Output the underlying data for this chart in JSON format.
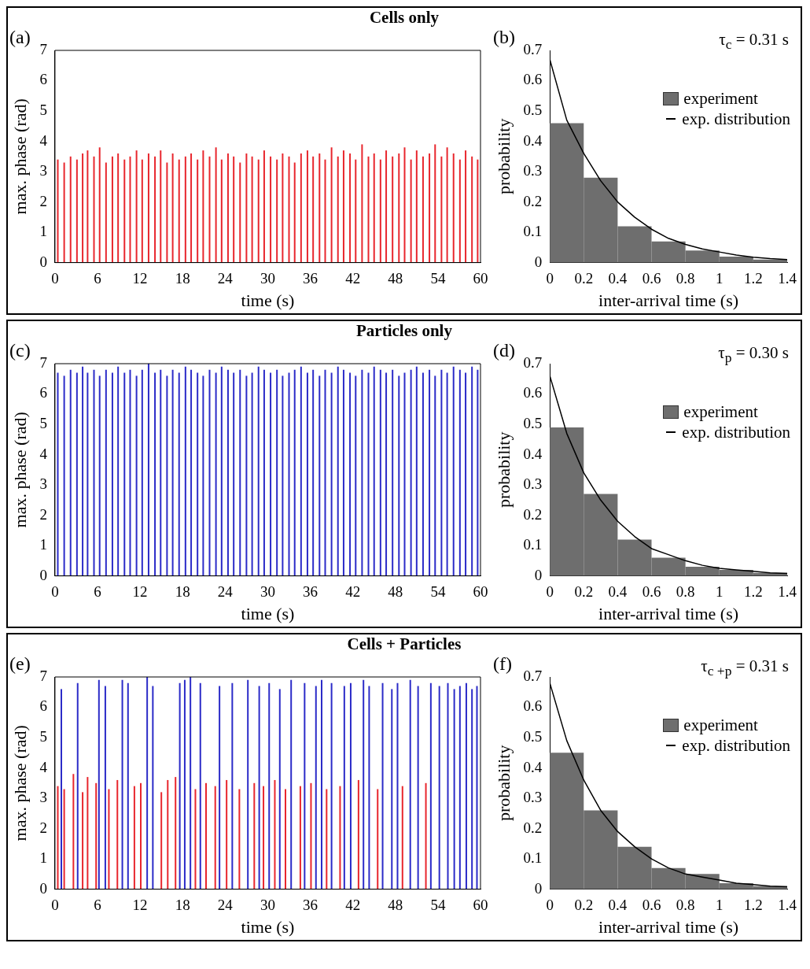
{
  "chart_data": [
    {
      "type": "bar",
      "title": "Cells only",
      "annotations": [
        "(a)"
      ],
      "xlabel": "time (s)",
      "ylabel": "max. phase (rad)",
      "xlim": [
        0,
        60
      ],
      "xticks": [
        0,
        6,
        12,
        18,
        24,
        30,
        36,
        42,
        48,
        54,
        60
      ],
      "ylim": [
        0,
        7
      ],
      "yticks": [
        0,
        1,
        2,
        3,
        4,
        5,
        6,
        7
      ],
      "color": "#e8262d",
      "x": [
        0.4,
        1.3,
        2.2,
        3.1,
        3.9,
        4.6,
        5.5,
        6.3,
        7.2,
        8.1,
        8.9,
        9.8,
        10.6,
        11.5,
        12.3,
        13.2,
        14.1,
        14.9,
        15.8,
        16.6,
        17.5,
        18.4,
        19.2,
        20.1,
        20.9,
        21.8,
        22.7,
        23.5,
        24.4,
        25.2,
        26.1,
        27.0,
        27.8,
        28.7,
        29.5,
        30.4,
        31.3,
        32.1,
        33.0,
        33.8,
        34.7,
        35.6,
        36.4,
        37.3,
        38.1,
        39.0,
        39.9,
        40.7,
        41.6,
        42.4,
        43.3,
        44.2,
        45.0,
        45.9,
        46.7,
        47.6,
        48.5,
        49.3,
        50.2,
        51.0,
        51.9,
        52.8,
        53.6,
        54.5,
        55.3,
        56.2,
        57.1,
        57.9,
        58.8,
        59.6
      ],
      "values": [
        3.4,
        3.3,
        3.5,
        3.4,
        3.6,
        3.7,
        3.5,
        3.8,
        3.3,
        3.5,
        3.6,
        3.4,
        3.5,
        3.7,
        3.4,
        3.6,
        3.5,
        3.7,
        3.3,
        3.6,
        3.4,
        3.5,
        3.6,
        3.4,
        3.7,
        3.5,
        3.8,
        3.4,
        3.6,
        3.5,
        3.3,
        3.6,
        3.5,
        3.4,
        3.7,
        3.5,
        3.4,
        3.6,
        3.5,
        3.3,
        3.6,
        3.7,
        3.5,
        3.6,
        3.4,
        3.8,
        3.5,
        3.7,
        3.6,
        3.4,
        3.9,
        3.5,
        3.6,
        3.4,
        3.7,
        3.5,
        3.6,
        3.8,
        3.4,
        3.7,
        3.5,
        3.6,
        3.9,
        3.5,
        3.8,
        3.6,
        3.4,
        3.7,
        3.5,
        3.4
      ]
    },
    {
      "type": "histogram",
      "annotations": [
        "(b)",
        "τ$_{c}$ = 0.31 s"
      ],
      "xlabel": "inter-arrival time (s)",
      "ylabel": "probability",
      "xlim": [
        0,
        1.4
      ],
      "xticks": [
        0,
        0.2,
        0.4,
        0.6,
        0.8,
        1,
        1.2,
        1.4
      ],
      "ylim": [
        0,
        0.7
      ],
      "yticks": [
        0,
        0.1,
        0.2,
        0.3,
        0.4,
        0.5,
        0.6,
        0.7
      ],
      "legend": "top right",
      "series": [
        {
          "type": "histogram",
          "name": "experiment",
          "color": "#6e6e6e",
          "bins": [
            0,
            0.2,
            0.4,
            0.6,
            0.8,
            1,
            1.2,
            1.4
          ],
          "values": [
            0.46,
            0.28,
            0.12,
            0.07,
            0.04,
            0.02,
            0.01
          ]
        },
        {
          "type": "line",
          "name": "exp. distribution",
          "color": "#000000",
          "x": [
            0,
            0.1,
            0.2,
            0.3,
            0.4,
            0.5,
            0.6,
            0.7,
            0.8,
            0.9,
            1,
            1.1,
            1.2,
            1.3,
            1.4
          ],
          "values": [
            0.67,
            0.47,
            0.36,
            0.27,
            0.2,
            0.15,
            0.11,
            0.08,
            0.06,
            0.045,
            0.035,
            0.025,
            0.018,
            0.013,
            0.01
          ]
        }
      ]
    },
    {
      "type": "bar",
      "title": "Particles only",
      "annotations": [
        "(c)"
      ],
      "xlabel": "time (s)",
      "ylabel": "max. phase (rad)",
      "xlim": [
        0,
        60
      ],
      "xticks": [
        0,
        6,
        12,
        18,
        24,
        30,
        36,
        42,
        48,
        54,
        60
      ],
      "ylim": [
        0,
        7
      ],
      "yticks": [
        0,
        1,
        2,
        3,
        4,
        5,
        6,
        7
      ],
      "color": "#2b2bc8",
      "x": [
        0.4,
        1.3,
        2.2,
        3.1,
        3.9,
        4.6,
        5.5,
        6.3,
        7.2,
        8.1,
        8.9,
        9.8,
        10.6,
        11.5,
        12.3,
        13.2,
        14.1,
        14.9,
        15.8,
        16.6,
        17.5,
        18.4,
        19.2,
        20.1,
        20.9,
        21.8,
        22.7,
        23.5,
        24.4,
        25.2,
        26.1,
        27.0,
        27.8,
        28.7,
        29.5,
        30.4,
        31.3,
        32.1,
        33.0,
        33.8,
        34.7,
        35.6,
        36.4,
        37.3,
        38.1,
        39.0,
        39.9,
        40.7,
        41.6,
        42.4,
        43.3,
        44.2,
        45.0,
        45.9,
        46.7,
        47.6,
        48.5,
        49.3,
        50.2,
        51.0,
        51.9,
        52.8,
        53.6,
        54.5,
        55.3,
        56.2,
        57.1,
        57.9,
        58.8,
        59.6
      ],
      "values": [
        6.7,
        6.6,
        6.8,
        6.7,
        6.9,
        6.7,
        6.8,
        6.6,
        6.8,
        6.7,
        6.9,
        6.7,
        6.8,
        6.6,
        6.8,
        7.0,
        6.7,
        6.8,
        6.6,
        6.8,
        6.7,
        6.9,
        6.8,
        6.7,
        6.6,
        6.8,
        6.7,
        6.9,
        6.8,
        6.7,
        6.8,
        6.6,
        6.7,
        6.9,
        6.8,
        6.7,
        6.8,
        6.6,
        6.7,
        6.8,
        6.9,
        6.7,
        6.8,
        6.6,
        6.8,
        6.7,
        6.9,
        6.8,
        6.7,
        6.6,
        6.8,
        6.7,
        6.9,
        6.8,
        6.7,
        6.8,
        6.6,
        6.7,
        6.8,
        6.9,
        6.7,
        6.8,
        6.6,
        6.8,
        6.7,
        6.9,
        6.8,
        6.7,
        6.9,
        6.8
      ]
    },
    {
      "type": "histogram",
      "annotations": [
        "(d)",
        "τ$_{p}$ = 0.30 s"
      ],
      "xlabel": "inter-arrival time (s)",
      "ylabel": "probability",
      "xlim": [
        0,
        1.4
      ],
      "xticks": [
        0,
        0.2,
        0.4,
        0.6,
        0.8,
        1,
        1.2,
        1.4
      ],
      "ylim": [
        0,
        0.7
      ],
      "yticks": [
        0,
        0.1,
        0.2,
        0.3,
        0.4,
        0.5,
        0.6,
        0.7
      ],
      "legend": "top right",
      "series": [
        {
          "type": "histogram",
          "name": "experiment",
          "color": "#6e6e6e",
          "bins": [
            0,
            0.2,
            0.4,
            0.6,
            0.8,
            1,
            1.2,
            1.4
          ],
          "values": [
            0.49,
            0.27,
            0.12,
            0.06,
            0.03,
            0.02,
            0.01
          ]
        },
        {
          "type": "line",
          "name": "exp. distribution",
          "color": "#000000",
          "x": [
            0,
            0.1,
            0.2,
            0.3,
            0.4,
            0.5,
            0.6,
            0.7,
            0.8,
            0.9,
            1,
            1.1,
            1.2,
            1.3,
            1.4
          ],
          "values": [
            0.66,
            0.47,
            0.34,
            0.25,
            0.18,
            0.13,
            0.09,
            0.07,
            0.05,
            0.035,
            0.025,
            0.02,
            0.015,
            0.01,
            0.008
          ]
        }
      ]
    },
    {
      "type": "bar",
      "title": "Cells + Particles",
      "annotations": [
        "(e)"
      ],
      "xlabel": "time (s)",
      "ylabel": "max. phase (rad)",
      "xlim": [
        0,
        60
      ],
      "xticks": [
        0,
        6,
        12,
        18,
        24,
        30,
        36,
        42,
        48,
        54,
        60
      ],
      "ylim": [
        0,
        7
      ],
      "yticks": [
        0,
        1,
        2,
        3,
        4,
        5,
        6,
        7
      ],
      "series": [
        {
          "color": "#e8262d",
          "x": [
            0.4,
            1.3,
            2.6,
            3.9,
            4.6,
            5.8,
            7.6,
            8.8,
            11.2,
            12.1,
            15.0,
            15.9,
            17.0,
            19.8,
            21.3,
            22.6,
            24.2,
            26.0,
            28.1,
            29.4,
            31.0,
            32.5,
            34.6,
            36.1,
            38.3,
            40.2,
            42.8,
            45.5,
            49.0,
            52.3
          ],
          "values": [
            3.4,
            3.3,
            3.8,
            3.2,
            3.7,
            3.5,
            3.3,
            3.6,
            3.4,
            3.5,
            3.2,
            3.6,
            3.7,
            3.3,
            3.5,
            3.4,
            3.6,
            3.3,
            3.5,
            3.4,
            3.6,
            3.3,
            3.4,
            3.5,
            3.3,
            3.4,
            3.6,
            3.3,
            3.4,
            3.5
          ]
        },
        {
          "color": "#2b2bc8",
          "x": [
            0.9,
            3.2,
            6.2,
            7.1,
            9.5,
            10.3,
            13.0,
            13.8,
            17.6,
            18.3,
            19.1,
            20.5,
            23.2,
            25.0,
            27.2,
            28.8,
            30.2,
            31.7,
            33.3,
            35.2,
            36.8,
            37.6,
            39.0,
            40.8,
            41.7,
            43.5,
            44.3,
            46.2,
            47.5,
            48.3,
            50.1,
            51.2,
            53.0,
            54.2,
            55.4,
            56.3,
            57.1,
            58.0,
            58.8,
            59.5
          ],
          "values": [
            6.6,
            6.8,
            6.9,
            6.7,
            6.9,
            6.8,
            7.0,
            6.7,
            6.8,
            6.9,
            7.0,
            6.8,
            6.7,
            6.8,
            6.9,
            6.7,
            6.8,
            6.6,
            6.9,
            6.8,
            6.7,
            6.9,
            6.8,
            6.7,
            6.8,
            6.9,
            6.7,
            6.8,
            6.6,
            6.8,
            6.9,
            6.7,
            6.8,
            6.7,
            6.8,
            6.6,
            6.7,
            6.8,
            6.6,
            6.7
          ]
        }
      ]
    },
    {
      "type": "histogram",
      "annotations": [
        "(f)",
        "τ$_{c +p}$ = 0.31 s"
      ],
      "xlabel": "inter-arrival time (s)",
      "ylabel": "probability",
      "xlim": [
        0,
        1.4
      ],
      "xticks": [
        0,
        0.2,
        0.4,
        0.6,
        0.8,
        1,
        1.2,
        1.4
      ],
      "ylim": [
        0,
        0.7
      ],
      "yticks": [
        0,
        0.1,
        0.2,
        0.3,
        0.4,
        0.5,
        0.6,
        0.7
      ],
      "legend": "top right",
      "series": [
        {
          "type": "histogram",
          "name": "experiment",
          "color": "#6e6e6e",
          "bins": [
            0,
            0.2,
            0.4,
            0.6,
            0.8,
            1,
            1.2,
            1.4
          ],
          "values": [
            0.45,
            0.26,
            0.14,
            0.07,
            0.05,
            0.02,
            0.01
          ]
        },
        {
          "type": "line",
          "name": "exp. distribution",
          "color": "#000000",
          "x": [
            0,
            0.1,
            0.2,
            0.3,
            0.4,
            0.5,
            0.6,
            0.7,
            0.8,
            0.9,
            1,
            1.1,
            1.2,
            1.3,
            1.4
          ],
          "values": [
            0.68,
            0.49,
            0.36,
            0.26,
            0.19,
            0.14,
            0.1,
            0.07,
            0.05,
            0.04,
            0.03,
            0.02,
            0.015,
            0.01,
            0.008
          ]
        }
      ]
    }
  ]
}
